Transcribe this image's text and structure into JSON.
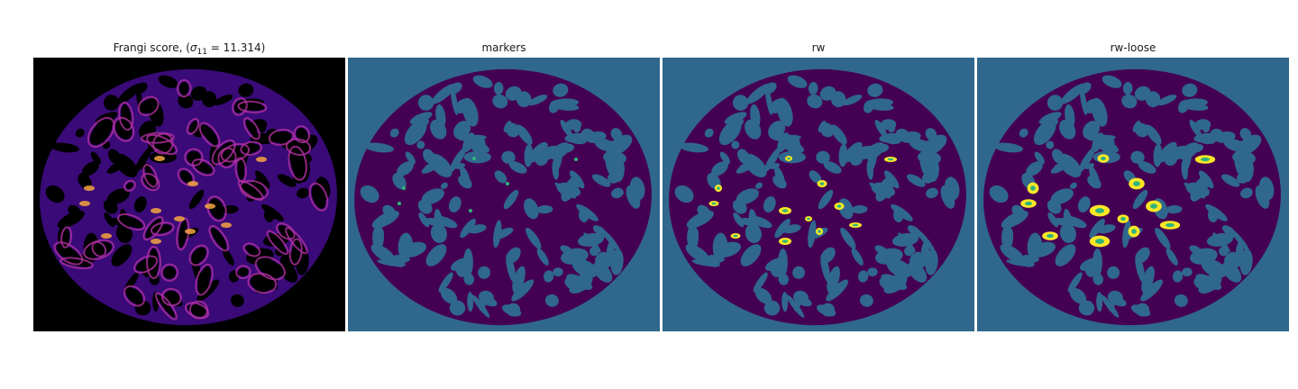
{
  "panels": [
    {
      "title_prefix": "Frangi score, (",
      "title_sym": "σ",
      "title_sub": "11",
      "title_suffix": " = 11.314)",
      "bg": "#000000",
      "mask": "#3a0a78",
      "ring": "#b02fa0",
      "hot": "#f4a640"
    },
    {
      "title": "markers",
      "bg": "#30678d",
      "mask": "#440154",
      "marker": "#2fb47c"
    },
    {
      "title": "rw",
      "bg": "#30678d",
      "mask": "#440154",
      "blob": "#fde725",
      "blob_core": "#2fb47c"
    },
    {
      "title": "rw-loose",
      "bg": "#30678d",
      "mask": "#440154",
      "blob": "#fde725",
      "blob_core": "#2fb47c"
    }
  ]
}
